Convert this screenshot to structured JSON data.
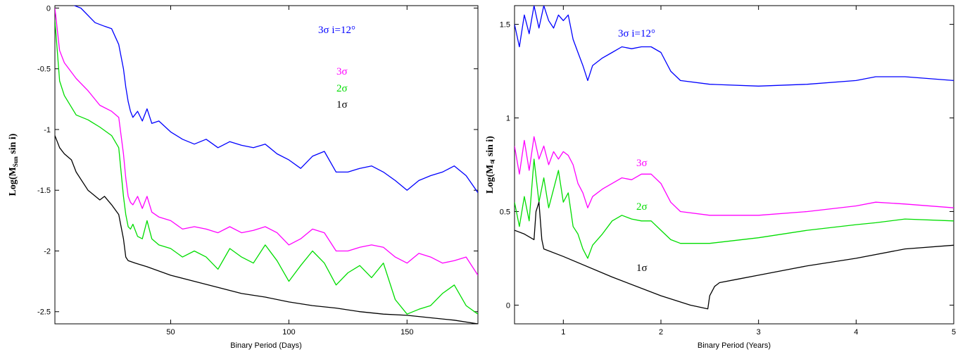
{
  "chart_data": [
    {
      "type": "line",
      "xlabel": "Binary Period (Days)",
      "ylabel": "Log(M_Sun sin i)",
      "ylabel_main": "Log(M",
      "ylabel_sub": "Sun",
      "ylabel_tail": " sin i)",
      "xlim": [
        1,
        180
      ],
      "ylim": [
        -2.6,
        0.02
      ],
      "xticks": [
        50,
        100,
        150
      ],
      "xtick_labels": [
        "50",
        "100",
        "150"
      ],
      "yticks": [
        0,
        -0.5,
        -1,
        -1.5,
        -2,
        -2.5
      ],
      "ytick_labels": [
        "0",
        "-0.5",
        "-1",
        "-1.5",
        "-2",
        "-2.5"
      ],
      "grid": false,
      "legend_position": "top-right",
      "series": [
        {
          "name": "3σ i=12°",
          "color": "#0000ff",
          "x": [
            1,
            8,
            12,
            18,
            22,
            25,
            28,
            30,
            31,
            32,
            33,
            34,
            36,
            38,
            40,
            42,
            45,
            50,
            55,
            60,
            65,
            70,
            75,
            80,
            85,
            90,
            95,
            100,
            105,
            110,
            115,
            120,
            125,
            130,
            135,
            140,
            145,
            150,
            155,
            160,
            165,
            170,
            175,
            180
          ],
          "y": [
            0.05,
            0.03,
            0,
            -0.12,
            -0.15,
            -0.17,
            -0.3,
            -0.5,
            -0.65,
            -0.77,
            -0.85,
            -0.9,
            -0.85,
            -0.93,
            -0.83,
            -0.95,
            -0.93,
            -1.02,
            -1.08,
            -1.12,
            -1.08,
            -1.15,
            -1.1,
            -1.13,
            -1.15,
            -1.12,
            -1.2,
            -1.25,
            -1.32,
            -1.22,
            -1.18,
            -1.35,
            -1.35,
            -1.32,
            -1.3,
            -1.35,
            -1.42,
            -1.5,
            -1.42,
            -1.38,
            -1.35,
            -1.3,
            -1.38,
            -1.52
          ]
        },
        {
          "name": "3σ",
          "color": "#ff00ff",
          "x": [
            1,
            3,
            5,
            10,
            15,
            20,
            25,
            28,
            30,
            31,
            32,
            33,
            34,
            36,
            38,
            40,
            42,
            45,
            50,
            55,
            60,
            65,
            70,
            75,
            80,
            85,
            90,
            95,
            100,
            105,
            110,
            115,
            120,
            125,
            130,
            135,
            140,
            145,
            150,
            155,
            160,
            165,
            170,
            175,
            180
          ],
          "y": [
            0.0,
            -0.35,
            -0.45,
            -0.58,
            -0.68,
            -0.8,
            -0.85,
            -0.9,
            -1.2,
            -1.4,
            -1.55,
            -1.6,
            -1.62,
            -1.55,
            -1.65,
            -1.55,
            -1.68,
            -1.72,
            -1.75,
            -1.82,
            -1.8,
            -1.82,
            -1.85,
            -1.8,
            -1.85,
            -1.83,
            -1.8,
            -1.85,
            -1.95,
            -1.9,
            -1.82,
            -1.85,
            -2.0,
            -2.0,
            -1.97,
            -1.95,
            -1.97,
            -2.05,
            -2.1,
            -2.02,
            -2.05,
            -2.1,
            -2.08,
            -2.05,
            -2.2
          ]
        },
        {
          "name": "2σ",
          "color": "#00dd00",
          "x": [
            1,
            3,
            5,
            10,
            15,
            20,
            25,
            28,
            30,
            31,
            32,
            33,
            34,
            36,
            38,
            40,
            42,
            45,
            50,
            55,
            60,
            65,
            70,
            75,
            80,
            85,
            90,
            95,
            100,
            105,
            110,
            115,
            120,
            125,
            130,
            135,
            140,
            145,
            150,
            155,
            160,
            165,
            170,
            175,
            180
          ],
          "y": [
            -0.1,
            -0.6,
            -0.72,
            -0.88,
            -0.92,
            -0.98,
            -1.05,
            -1.15,
            -1.55,
            -1.7,
            -1.8,
            -1.82,
            -1.78,
            -1.88,
            -1.9,
            -1.75,
            -1.9,
            -1.95,
            -1.98,
            -2.05,
            -2.0,
            -2.05,
            -2.15,
            -1.98,
            -2.05,
            -2.1,
            -1.95,
            -2.08,
            -2.25,
            -2.12,
            -2.0,
            -2.1,
            -2.28,
            -2.18,
            -2.12,
            -2.22,
            -2.1,
            -2.4,
            -2.52,
            -2.48,
            -2.45,
            -2.35,
            -2.28,
            -2.45,
            -2.52
          ]
        },
        {
          "name": "1σ",
          "color": "#000000",
          "x": [
            1,
            3,
            5,
            8,
            10,
            15,
            20,
            22,
            25,
            28,
            30,
            31,
            32,
            35,
            40,
            50,
            60,
            70,
            80,
            90,
            100,
            110,
            120,
            130,
            140,
            150,
            160,
            170,
            180
          ],
          "y": [
            -1.05,
            -1.15,
            -1.2,
            -1.25,
            -1.35,
            -1.5,
            -1.58,
            -1.55,
            -1.62,
            -1.7,
            -1.9,
            -2.05,
            -2.08,
            -2.1,
            -2.13,
            -2.2,
            -2.25,
            -2.3,
            -2.35,
            -2.38,
            -2.42,
            -2.45,
            -2.47,
            -2.5,
            -2.52,
            -2.53,
            -2.55,
            -2.57,
            -2.6
          ]
        }
      ],
      "legend": [
        "3σ i=12°",
        "3σ",
        "2σ",
        "1σ"
      ]
    },
    {
      "type": "line",
      "xlabel": "Binary Period (Years)",
      "ylabel": "Log(M_♃ sin i)",
      "ylabel_main": "Log(M",
      "ylabel_sub": "♃",
      "ylabel_tail": " sin i)",
      "xlim": [
        0.5,
        5
      ],
      "ylim": [
        -0.1,
        1.6
      ],
      "xticks": [
        1,
        2,
        3,
        4,
        5
      ],
      "xtick_labels": [
        "1",
        "2",
        "3",
        "4",
        "5"
      ],
      "yticks": [
        0,
        0.5,
        1,
        1.5
      ],
      "ytick_labels": [
        "0",
        "0.5",
        "1",
        "1.5"
      ],
      "grid": false,
      "series": [
        {
          "name": "3σ i=12°",
          "color": "#0000ff",
          "x": [
            0.5,
            0.55,
            0.6,
            0.65,
            0.7,
            0.75,
            0.8,
            0.85,
            0.9,
            0.95,
            1.0,
            1.05,
            1.1,
            1.15,
            1.2,
            1.25,
            1.3,
            1.4,
            1.5,
            1.6,
            1.7,
            1.8,
            1.9,
            2.0,
            2.1,
            2.2,
            2.5,
            3.0,
            3.5,
            4.0,
            4.2,
            4.5,
            5.0
          ],
          "y": [
            1.5,
            1.38,
            1.55,
            1.45,
            1.6,
            1.48,
            1.6,
            1.52,
            1.48,
            1.55,
            1.52,
            1.55,
            1.42,
            1.35,
            1.28,
            1.2,
            1.28,
            1.32,
            1.35,
            1.38,
            1.37,
            1.38,
            1.38,
            1.35,
            1.25,
            1.2,
            1.18,
            1.17,
            1.18,
            1.2,
            1.22,
            1.22,
            1.2
          ]
        },
        {
          "name": "3σ",
          "color": "#ff00ff",
          "x": [
            0.5,
            0.55,
            0.6,
            0.65,
            0.7,
            0.75,
            0.8,
            0.85,
            0.9,
            0.95,
            1.0,
            1.05,
            1.1,
            1.15,
            1.2,
            1.25,
            1.3,
            1.4,
            1.5,
            1.6,
            1.7,
            1.8,
            1.9,
            2.0,
            2.1,
            2.2,
            2.5,
            3.0,
            3.5,
            4.0,
            4.2,
            4.5,
            5.0
          ],
          "y": [
            0.85,
            0.7,
            0.88,
            0.72,
            0.9,
            0.78,
            0.85,
            0.75,
            0.82,
            0.78,
            0.82,
            0.8,
            0.75,
            0.65,
            0.6,
            0.52,
            0.58,
            0.62,
            0.65,
            0.68,
            0.67,
            0.7,
            0.7,
            0.65,
            0.55,
            0.5,
            0.48,
            0.48,
            0.5,
            0.53,
            0.55,
            0.54,
            0.52
          ]
        },
        {
          "name": "2σ",
          "color": "#00dd00",
          "x": [
            0.5,
            0.55,
            0.6,
            0.65,
            0.7,
            0.75,
            0.8,
            0.85,
            0.9,
            0.95,
            1.0,
            1.05,
            1.1,
            1.15,
            1.2,
            1.25,
            1.3,
            1.4,
            1.5,
            1.6,
            1.7,
            1.8,
            1.9,
            2.0,
            2.1,
            2.2,
            2.5,
            3.0,
            3.5,
            4.0,
            4.2,
            4.5,
            5.0
          ],
          "y": [
            0.55,
            0.42,
            0.58,
            0.45,
            0.78,
            0.55,
            0.68,
            0.52,
            0.62,
            0.72,
            0.55,
            0.6,
            0.42,
            0.38,
            0.3,
            0.25,
            0.32,
            0.38,
            0.45,
            0.48,
            0.46,
            0.45,
            0.45,
            0.4,
            0.35,
            0.33,
            0.33,
            0.36,
            0.4,
            0.43,
            0.44,
            0.46,
            0.45
          ]
        },
        {
          "name": "1σ",
          "color": "#000000",
          "x": [
            0.5,
            0.6,
            0.7,
            0.72,
            0.75,
            0.78,
            0.8,
            1.0,
            1.5,
            2.0,
            2.3,
            2.48,
            2.5,
            2.55,
            2.6,
            2.8,
            3.0,
            3.5,
            4.0,
            4.5,
            5.0
          ],
          "y": [
            0.4,
            0.38,
            0.35,
            0.5,
            0.55,
            0.35,
            0.3,
            0.26,
            0.15,
            0.05,
            0.0,
            -0.02,
            0.05,
            0.1,
            0.12,
            0.14,
            0.16,
            0.21,
            0.25,
            0.3,
            0.32
          ]
        }
      ],
      "legend": [
        "3σ i=12°",
        "3σ",
        "2σ",
        "1σ"
      ]
    }
  ]
}
